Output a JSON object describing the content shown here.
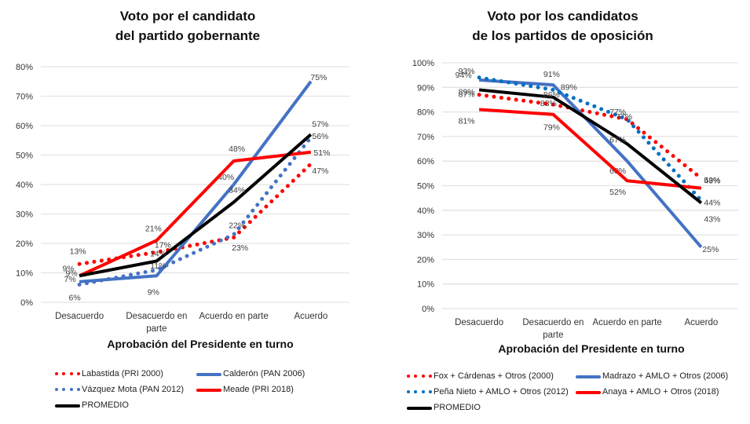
{
  "chart_data": [
    {
      "id": "left",
      "type": "line",
      "title": [
        "Voto por el candidato",
        "del partido gobernante"
      ],
      "xlabel": "Aprobación del Presidente en turno",
      "ylabel": "",
      "categories": [
        "Desacuerdo",
        "Desacuerdo en parte",
        "Acuerdo en parte",
        "Acuerdo"
      ],
      "ylim": [
        0,
        80
      ],
      "yticks": [
        "0%",
        "10%",
        "20%",
        "30%",
        "40%",
        "50%",
        "60%",
        "70%",
        "80%"
      ],
      "grid": true,
      "legend_position": "bottom",
      "series": [
        {
          "name": "Labastida (PRI 2000)",
          "color": "#ff0000",
          "style": "dotted",
          "values": [
            13,
            17,
            22,
            47
          ]
        },
        {
          "name": "Calderón (PAN 2006)",
          "color": "#4472c4",
          "style": "solid",
          "values": [
            7,
            9,
            40,
            75
          ]
        },
        {
          "name": "Vázquez Mota (PAN 2012)",
          "color": "#4472c4",
          "style": "dotted",
          "values": [
            6,
            11,
            23,
            56
          ]
        },
        {
          "name": "Meade (PRI 2018)",
          "color": "#ff0000",
          "style": "solid",
          "values": [
            9,
            21,
            48,
            51
          ]
        },
        {
          "name": "PROMEDIO",
          "color": "#000000",
          "style": "solid",
          "values": [
            9,
            14,
            34,
            57
          ]
        }
      ]
    },
    {
      "id": "right",
      "type": "line",
      "title": [
        "Voto por los candidatos",
        "de los partidos de oposición"
      ],
      "xlabel": "Aprobación del Presidente en turno",
      "ylabel": "",
      "categories": [
        "Desacuerdo",
        "Desacuerdo en parte",
        "Acuerdo en parte",
        "Acuerdo"
      ],
      "ylim": [
        0,
        100
      ],
      "yticks": [
        "0%",
        "10%",
        "20%",
        "30%",
        "40%",
        "50%",
        "60%",
        "70%",
        "80%",
        "90%",
        "100%"
      ],
      "grid": true,
      "legend_position": "bottom",
      "series": [
        {
          "name": "Fox + Cárdenas + Otros (2000)",
          "color": "#ff0000",
          "style": "dotted",
          "values": [
            87,
            83,
            77,
            53
          ]
        },
        {
          "name": "Madrazo + AMLO + Otros (2006)",
          "color": "#4472c4",
          "style": "solid",
          "values": [
            93,
            91,
            60,
            25
          ]
        },
        {
          "name": "Peña Nieto + AMLO + Otros (2012)",
          "color": "#0070c0",
          "style": "dotted",
          "values": [
            94,
            89,
            77,
            44
          ]
        },
        {
          "name": "Anaya + AMLO + Otros (2018)",
          "color": "#ff0000",
          "style": "solid",
          "values": [
            81,
            79,
            52,
            49
          ]
        },
        {
          "name": "PROMEDIO",
          "color": "#000000",
          "style": "solid",
          "values": [
            89,
            86,
            67,
            43
          ]
        }
      ]
    }
  ]
}
